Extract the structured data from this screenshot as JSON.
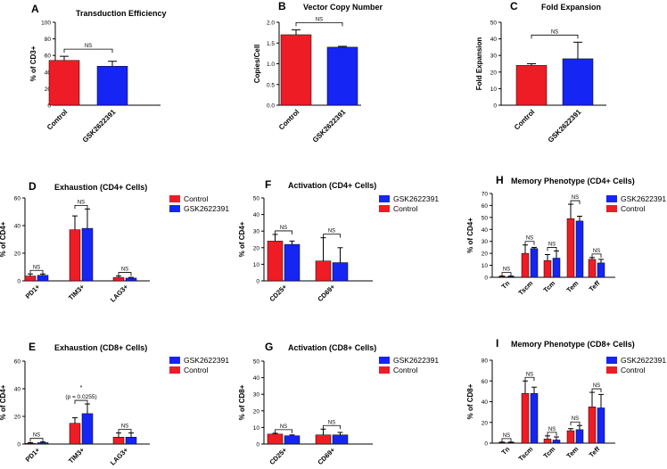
{
  "colors": {
    "control": "#ee1c25",
    "gsk": "#1525f4",
    "axis": "#000000"
  },
  "series_names": {
    "control": "Control",
    "gsk": "GSK2622391"
  },
  "chart_data": [
    {
      "id": "A",
      "type": "bar",
      "letter": "A",
      "title": "Transduction Efficiency",
      "ylabel": "% of CD3+",
      "ylim": [
        0,
        100
      ],
      "ticks": [
        0,
        20,
        40,
        60,
        80,
        100
      ],
      "categories": [
        "Control",
        "GSK2622391"
      ],
      "values": [
        54,
        47
      ],
      "errors": [
        5,
        6
      ],
      "colors": [
        "control",
        "gsk"
      ],
      "annotations": [
        {
          "text": "NS",
          "pair": [
            0,
            1
          ]
        }
      ]
    },
    {
      "id": "B",
      "type": "bar",
      "letter": "B",
      "title": "Vector Copy Number",
      "ylabel": "Copies/Cell",
      "ylim": [
        0,
        2.0
      ],
      "ticks": [
        0,
        0.5,
        1.0,
        1.5,
        2.0
      ],
      "tick_labels": [
        "0.0",
        "0.5",
        "1.0",
        "1.5",
        "2.0"
      ],
      "categories": [
        "Control",
        "GSK2622391"
      ],
      "values": [
        1.7,
        1.4
      ],
      "errors": [
        0.12,
        0.02
      ],
      "colors": [
        "control",
        "gsk"
      ],
      "annotations": [
        {
          "text": "NS",
          "pair": [
            0,
            1
          ]
        }
      ]
    },
    {
      "id": "C",
      "type": "bar",
      "letter": "C",
      "title": "Fold Expansion",
      "ylabel": "Fold Expansion",
      "ylim": [
        0,
        50
      ],
      "ticks": [
        0,
        10,
        20,
        30,
        40,
        50
      ],
      "categories": [
        "Control",
        "GSK2622391"
      ],
      "values": [
        24,
        28
      ],
      "errors": [
        1,
        10
      ],
      "colors": [
        "control",
        "gsk"
      ],
      "annotations": [
        {
          "text": "NS",
          "pair": [
            0,
            1
          ]
        }
      ]
    },
    {
      "id": "D",
      "type": "bar",
      "letter": "D",
      "title": "Exhaustion (CD4+ Cells)",
      "ylabel": "% of CD4+",
      "ylim": [
        0,
        60
      ],
      "ticks": [
        0,
        20,
        40,
        60
      ],
      "categories": [
        "PD1+",
        "TIM3+",
        "LAG3+"
      ],
      "series": [
        {
          "name": "Control",
          "color": "control",
          "values": [
            3.5,
            37,
            2.5
          ],
          "errors": [
            1.5,
            10,
            1
          ]
        },
        {
          "name": "GSK2622391",
          "color": "gsk",
          "values": [
            4,
            38,
            2
          ],
          "errors": [
            1,
            14,
            0.5
          ]
        }
      ],
      "legend": {
        "position": "top-right",
        "order": [
          "control",
          "gsk"
        ]
      },
      "annotations": [
        {
          "text": "NS",
          "group": 0
        },
        {
          "text": "NS",
          "group": 1
        },
        {
          "text": "NS",
          "group": 2
        }
      ]
    },
    {
      "id": "E",
      "type": "bar",
      "letter": "E",
      "title": "Exhaustion (CD8+ Cells)",
      "ylabel": "% of CD4+",
      "ylim": [
        0,
        60
      ],
      "ticks": [
        0,
        20,
        40,
        60
      ],
      "categories": [
        "PD1+",
        "TIM3+",
        "LAG3+"
      ],
      "series": [
        {
          "name": "Control",
          "color": "control",
          "values": [
            0.5,
            15,
            5
          ],
          "errors": [
            0.5,
            4,
            3
          ]
        },
        {
          "name": "GSK2622391",
          "color": "gsk",
          "values": [
            1,
            22,
            5
          ],
          "errors": [
            0.5,
            7,
            3
          ]
        }
      ],
      "legend": {
        "position": "top-right",
        "order": [
          "gsk",
          "control"
        ]
      },
      "annotations": [
        {
          "text": "NS",
          "group": 0
        },
        {
          "text": "*",
          "sub": "(p = 0.0255)",
          "group": 1
        },
        {
          "text": "NS",
          "group": 2
        }
      ]
    },
    {
      "id": "F",
      "type": "bar",
      "letter": "F",
      "title": "Activation (CD4+ Cells)",
      "ylabel": "% of CD4+",
      "ylim": [
        0,
        50
      ],
      "ticks": [
        0,
        10,
        20,
        30,
        40,
        50
      ],
      "categories": [
        "CD25+",
        "CD69+"
      ],
      "series": [
        {
          "name": "Control",
          "color": "control",
          "values": [
            24,
            12
          ],
          "errors": [
            4,
            14
          ]
        },
        {
          "name": "GSK2622391",
          "color": "gsk",
          "values": [
            22,
            11
          ],
          "errors": [
            2,
            9
          ]
        }
      ],
      "legend": {
        "position": "top-right",
        "order": [
          "gsk",
          "control"
        ]
      },
      "annotations": [
        {
          "text": "NS",
          "group": 0
        },
        {
          "text": "NS",
          "group": 1
        }
      ]
    },
    {
      "id": "G",
      "type": "bar",
      "letter": "G",
      "title": "Activation (CD8+ Cells)",
      "ylabel": "% of CD8+",
      "ylim": [
        0,
        50
      ],
      "ticks": [
        0,
        10,
        20,
        30,
        40,
        50
      ],
      "categories": [
        "CD25+",
        "CD69+"
      ],
      "series": [
        {
          "name": "Control",
          "color": "control",
          "values": [
            6,
            5.5
          ],
          "errors": [
            0.5,
            3.5
          ]
        },
        {
          "name": "GSK2622391",
          "color": "gsk",
          "values": [
            5,
            5.5
          ],
          "errors": [
            0.5,
            1.5
          ]
        }
      ],
      "legend": {
        "position": "top-right",
        "order": [
          "gsk",
          "control"
        ]
      },
      "annotations": [
        {
          "text": "NS",
          "group": 0
        },
        {
          "text": "NS",
          "group": 1
        }
      ]
    },
    {
      "id": "H",
      "type": "bar",
      "letter": "H",
      "title": "Memory Phenotype (CD4+ Cells)",
      "ylabel": "% of CD4+",
      "ylim": [
        0,
        70
      ],
      "ticks": [
        0,
        10,
        20,
        30,
        40,
        50,
        60,
        70
      ],
      "categories": [
        "Tn",
        "Tscm",
        "Tcm",
        "Tem",
        "Teff"
      ],
      "series": [
        {
          "name": "Control",
          "color": "control",
          "values": [
            0.5,
            20,
            14,
            49,
            15
          ],
          "errors": [
            0.5,
            7,
            5,
            12,
            1.5
          ]
        },
        {
          "name": "GSK2622391",
          "color": "gsk",
          "values": [
            0.5,
            24,
            16,
            47,
            12
          ],
          "errors": [
            0.5,
            1,
            6,
            4,
            3
          ]
        }
      ],
      "legend": {
        "position": "top-right",
        "order": [
          "gsk",
          "control"
        ]
      },
      "annotations": [
        {
          "text": "NS",
          "group": 0
        },
        {
          "text": "NS",
          "group": 1
        },
        {
          "text": "NS",
          "group": 2
        },
        {
          "text": "NS",
          "group": 3
        },
        {
          "text": "NS",
          "group": 4
        }
      ]
    },
    {
      "id": "I",
      "type": "bar",
      "letter": "I",
      "title": "Memory Phenotype (CD8+ Cells)",
      "ylabel": "% of CD8+",
      "ylim": [
        0,
        80
      ],
      "ticks": [
        0,
        20,
        40,
        60,
        80
      ],
      "categories": [
        "Tn",
        "Tscm",
        "Tcm",
        "Tem",
        "Teff"
      ],
      "series": [
        {
          "name": "Control",
          "color": "control",
          "values": [
            0.5,
            48,
            4,
            12,
            35
          ],
          "errors": [
            0.5,
            12,
            3,
            2,
            14
          ]
        },
        {
          "name": "GSK2622391",
          "color": "gsk",
          "values": [
            0.5,
            48,
            3,
            13,
            34
          ],
          "errors": [
            0.5,
            6,
            3,
            4,
            13
          ]
        }
      ],
      "legend": {
        "position": "top-right",
        "order": [
          "gsk",
          "control"
        ]
      },
      "annotations": [
        {
          "text": "NS",
          "group": 0
        },
        {
          "text": "NS",
          "group": 1
        },
        {
          "text": "NS",
          "group": 2
        },
        {
          "text": "NS",
          "group": 3
        },
        {
          "text": "NS",
          "group": 4
        }
      ]
    }
  ]
}
